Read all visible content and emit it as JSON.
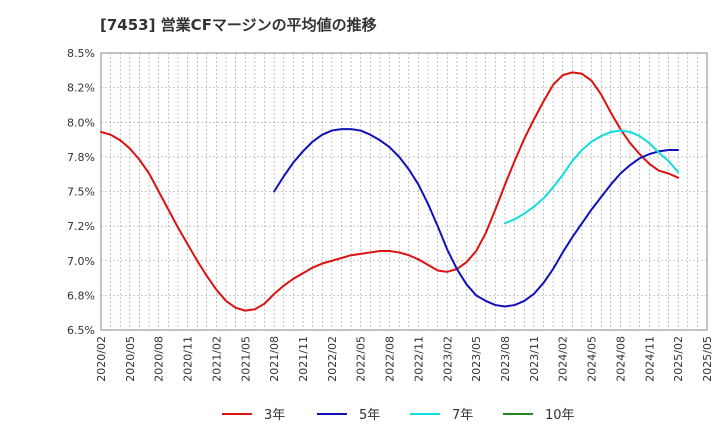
{
  "chart_data": {
    "type": "line",
    "title": "[7453]  営業CFマージンの平均値の推移",
    "xlabel": "",
    "ylabel": "",
    "x_tick_labels": [
      "2020/02",
      "2020/05",
      "2020/08",
      "2020/11",
      "2021/02",
      "2021/05",
      "2021/08",
      "2021/11",
      "2022/02",
      "2022/05",
      "2022/08",
      "2022/11",
      "2023/02",
      "2023/05",
      "2023/08",
      "2023/11",
      "2024/02",
      "2024/05",
      "2024/08",
      "2024/11",
      "2025/02",
      "2025/05"
    ],
    "y_tick_labels": [
      "6.5%",
      "6.8%",
      "7.0%",
      "7.2%",
      "7.5%",
      "7.8%",
      "8.0%",
      "8.2%",
      "8.5%"
    ],
    "ylim": [
      6.5,
      8.5
    ],
    "grid": true,
    "legend_position": "bottom",
    "series": [
      {
        "name": "3年",
        "color": "#dd1111",
        "x": [
          "2020/02",
          "2020/03",
          "2020/04",
          "2020/05",
          "2020/06",
          "2020/07",
          "2020/08",
          "2020/09",
          "2020/10",
          "2020/11",
          "2020/12",
          "2021/01",
          "2021/02",
          "2021/03",
          "2021/04",
          "2021/05",
          "2021/06",
          "2021/07",
          "2021/08",
          "2021/09",
          "2021/10",
          "2021/11",
          "2021/12",
          "2022/01",
          "2022/02",
          "2022/03",
          "2022/04",
          "2022/05",
          "2022/06",
          "2022/07",
          "2022/08",
          "2022/09",
          "2022/10",
          "2022/11",
          "2022/12",
          "2023/01",
          "2023/02",
          "2023/03",
          "2023/04",
          "2023/05",
          "2023/06",
          "2023/07",
          "2023/08",
          "2023/09",
          "2023/10",
          "2023/11",
          "2023/12",
          "2024/01",
          "2024/02",
          "2024/03",
          "2024/04",
          "2024/05",
          "2024/06",
          "2024/07",
          "2024/08",
          "2024/09",
          "2024/10",
          "2024/11",
          "2024/12",
          "2025/01",
          "2025/02"
        ],
        "values": [
          7.93,
          7.91,
          7.87,
          7.81,
          7.73,
          7.63,
          7.5,
          7.37,
          7.24,
          7.12,
          7.0,
          6.89,
          6.79,
          6.71,
          6.66,
          6.64,
          6.65,
          6.69,
          6.76,
          6.82,
          6.87,
          6.91,
          6.95,
          6.98,
          7.0,
          7.02,
          7.04,
          7.05,
          7.06,
          7.07,
          7.07,
          7.06,
          7.04,
          7.01,
          6.97,
          6.93,
          6.92,
          6.94,
          6.99,
          7.07,
          7.2,
          7.37,
          7.55,
          7.72,
          7.88,
          8.02,
          8.15,
          8.27,
          8.34,
          8.36,
          8.35,
          8.3,
          8.2,
          8.07,
          7.95,
          7.85,
          7.77,
          7.7,
          7.65,
          7.63,
          7.6
        ]
      },
      {
        "name": "5年",
        "color": "#1111bb",
        "x": [
          "2021/08",
          "2021/09",
          "2021/10",
          "2021/11",
          "2021/12",
          "2022/01",
          "2022/02",
          "2022/03",
          "2022/04",
          "2022/05",
          "2022/06",
          "2022/07",
          "2022/08",
          "2022/09",
          "2022/10",
          "2022/11",
          "2022/12",
          "2023/01",
          "2023/02",
          "2023/03",
          "2023/04",
          "2023/05",
          "2023/06",
          "2023/07",
          "2023/08",
          "2023/09",
          "2023/10",
          "2023/11",
          "2023/12",
          "2024/01",
          "2024/02",
          "2024/03",
          "2024/04",
          "2024/05",
          "2024/06",
          "2024/07",
          "2024/08",
          "2024/09",
          "2024/10",
          "2024/11",
          "2024/12",
          "2025/01",
          "2025/02"
        ],
        "values": [
          7.5,
          7.61,
          7.71,
          7.79,
          7.86,
          7.91,
          7.94,
          7.95,
          7.95,
          7.94,
          7.91,
          7.87,
          7.82,
          7.75,
          7.66,
          7.55,
          7.41,
          7.25,
          7.08,
          6.94,
          6.83,
          6.75,
          6.71,
          6.68,
          6.67,
          6.68,
          6.71,
          6.76,
          6.84,
          6.94,
          7.06,
          7.17,
          7.27,
          7.37,
          7.46,
          7.55,
          7.63,
          7.69,
          7.74,
          7.77,
          7.79,
          7.8,
          7.8
        ]
      },
      {
        "name": "7年",
        "color": "#11dddd",
        "x": [
          "2023/08",
          "2023/09",
          "2023/10",
          "2023/11",
          "2023/12",
          "2024/01",
          "2024/02",
          "2024/03",
          "2024/04",
          "2024/05",
          "2024/06",
          "2024/07",
          "2024/08",
          "2024/09",
          "2024/10",
          "2024/11",
          "2024/12",
          "2025/01",
          "2025/02"
        ],
        "values": [
          7.27,
          7.3,
          7.34,
          7.39,
          7.45,
          7.53,
          7.62,
          7.72,
          7.8,
          7.86,
          7.9,
          7.93,
          7.94,
          7.93,
          7.9,
          7.85,
          7.78,
          7.72,
          7.64
        ]
      },
      {
        "name": "10年",
        "color": "#228822",
        "x": [],
        "values": []
      }
    ]
  }
}
